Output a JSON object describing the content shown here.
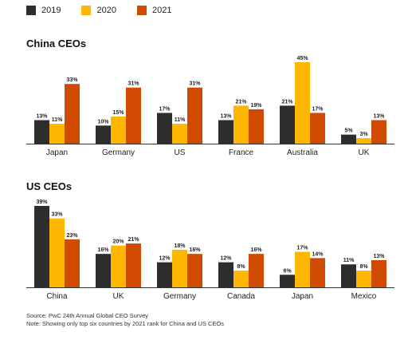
{
  "legend": [
    {
      "label": "2019",
      "color": "#2d2d2d"
    },
    {
      "label": "2020",
      "color": "#ffb600"
    },
    {
      "label": "2021",
      "color": "#d04a02"
    }
  ],
  "chart_data": [
    {
      "type": "bar",
      "title": "China CEOs",
      "categories": [
        "Japan",
        "Germany",
        "US",
        "France",
        "Australia",
        "UK"
      ],
      "series": [
        {
          "name": "2019",
          "values": [
            13,
            10,
            17,
            13,
            21,
            5
          ]
        },
        {
          "name": "2020",
          "values": [
            11,
            15,
            11,
            21,
            45,
            3
          ]
        },
        {
          "name": "2021",
          "values": [
            33,
            31,
            31,
            19,
            17,
            13
          ]
        }
      ],
      "value_suffix": "%",
      "ylim": [
        0,
        45
      ],
      "grid": false,
      "legend_position": "top-left"
    },
    {
      "type": "bar",
      "title": "US CEOs",
      "categories": [
        "China",
        "UK",
        "Germany",
        "Canada",
        "Japan",
        "Mexico"
      ],
      "series": [
        {
          "name": "2019",
          "values": [
            39,
            16,
            12,
            12,
            6,
            11
          ]
        },
        {
          "name": "2020",
          "values": [
            33,
            20,
            18,
            8,
            17,
            8
          ]
        },
        {
          "name": "2021",
          "values": [
            23,
            21,
            16,
            16,
            14,
            13
          ]
        }
      ],
      "value_suffix": "%",
      "ylim": [
        0,
        39
      ],
      "grid": false,
      "legend_position": "top-left"
    }
  ],
  "notes": {
    "source": "Source: PwC 24th Annual Global CEO Survey",
    "note": "Note: Showing only top six countries by 2021 rank for China and US CEOs"
  }
}
